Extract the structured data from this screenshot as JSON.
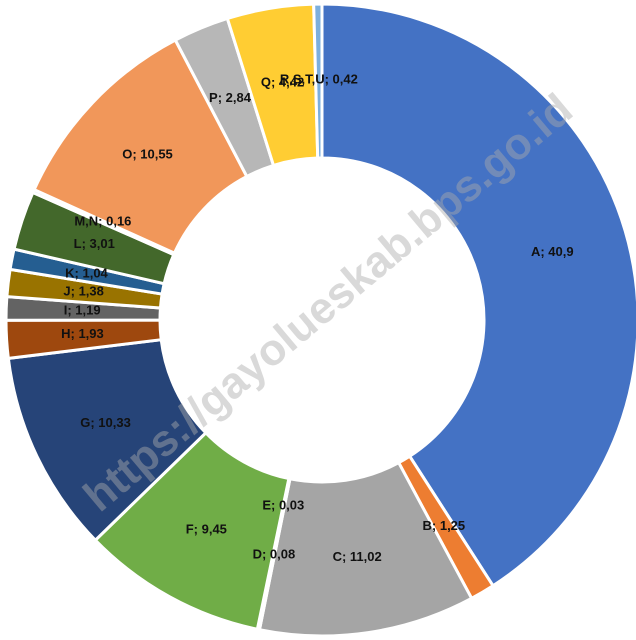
{
  "chart_data": {
    "type": "donut",
    "values": [
      40.9,
      1.25,
      11.02,
      0.08,
      0.03,
      9.45,
      10.33,
      1.93,
      1.19,
      1.38,
      1.04,
      3.01,
      0.16,
      10.55,
      2.84,
      4.42,
      0.42
    ],
    "value_labels": [
      "A; 40,9",
      "B; 1,25",
      "C; 11,02",
      "D; 0,08",
      "E; 0,03",
      "F; 9,45",
      "G; 10,33",
      "H; 1,93",
      "I; 1,19",
      "J; 1,38",
      "K; 1,04",
      "L; 3,01",
      "M,N; 0,16",
      "O; 10,55",
      "P; 2,84",
      "Q; 4,42",
      "R,S,T,U; 0,42"
    ],
    "colors": [
      "#4472c4",
      "#ed7d31",
      "#a5a5a5",
      "#ffc000",
      "#5b9bd5",
      "#70ad47",
      "#264478",
      "#9e480e",
      "#636363",
      "#997300",
      "#255e91",
      "#43682b",
      "#698ed0",
      "#f1975a",
      "#b7b7b7",
      "#ffcd33",
      "#7cafdd"
    ],
    "watermark": "https://gayolueskab.bps.go.id"
  }
}
